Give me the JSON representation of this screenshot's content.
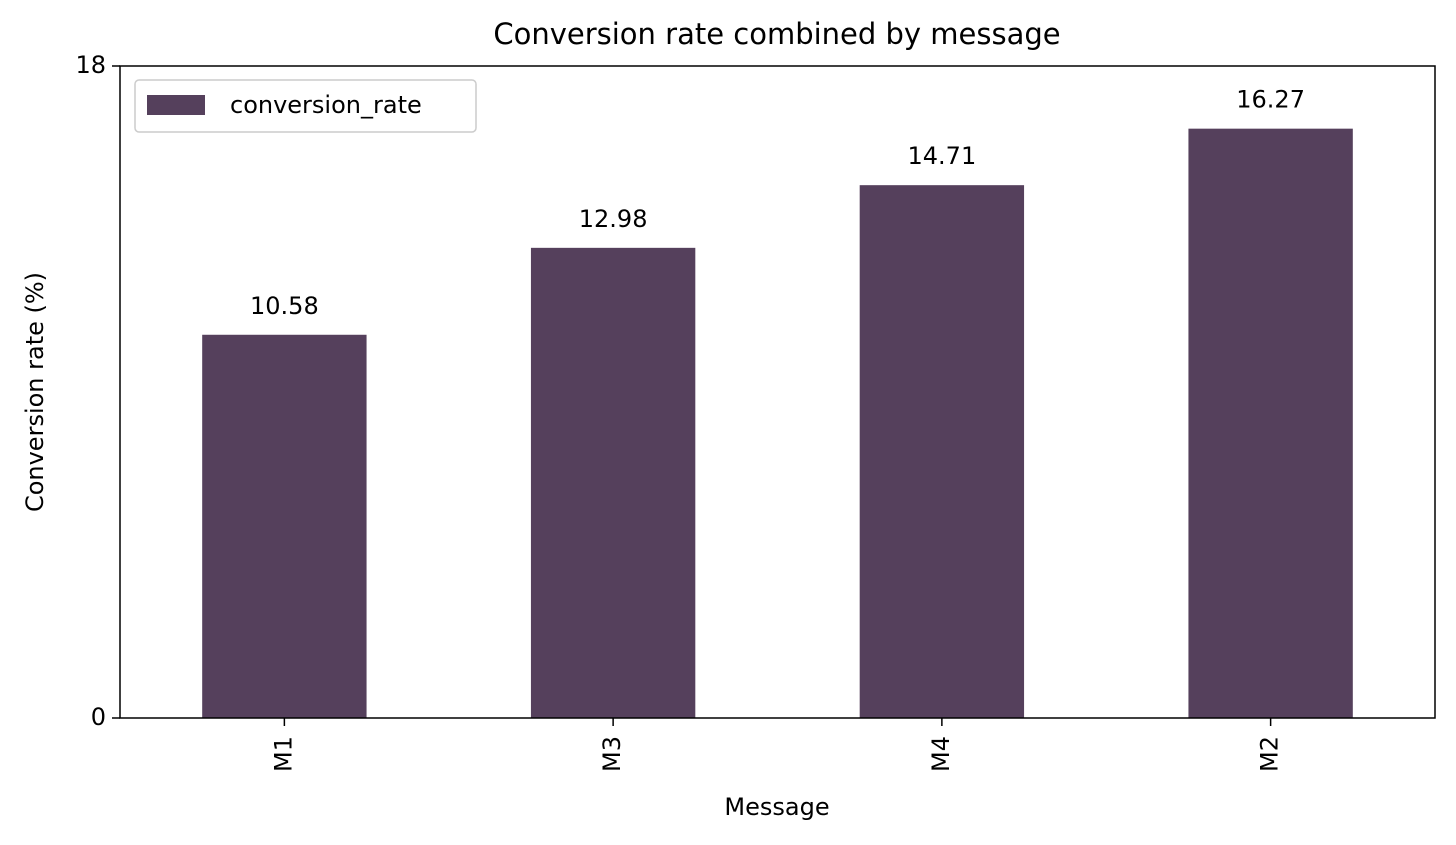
{
  "chart_data": {
    "type": "bar",
    "title": "Conversion rate combined by message",
    "x_label": "Message",
    "y_label": "Conversion rate (%)",
    "categories": [
      "M1",
      "M3",
      "M4",
      "M2"
    ],
    "series": [
      {
        "name": "conversion_rate",
        "color": "#55405c",
        "values": [
          10.58,
          12.98,
          14.71,
          16.27
        ]
      }
    ],
    "ylim": [
      0,
      18
    ],
    "yticks": [
      0,
      18
    ],
    "legend": "upper left",
    "data_labels": true
  }
}
